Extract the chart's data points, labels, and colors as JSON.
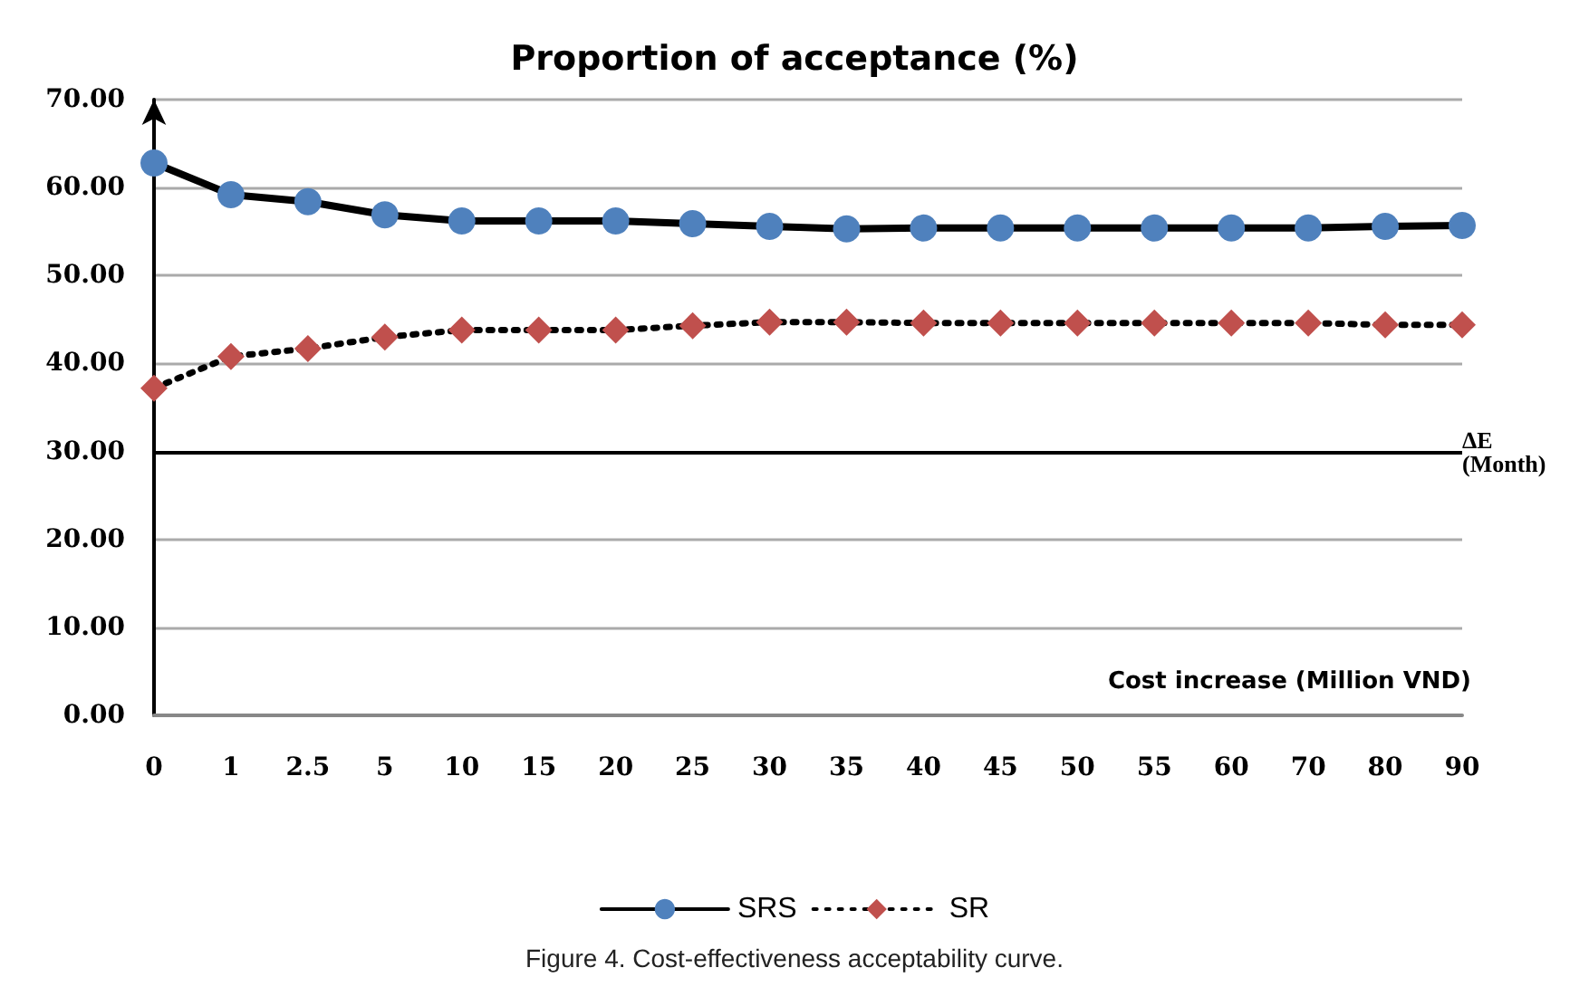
{
  "chart_data": {
    "type": "line",
    "title": "Proportion of acceptance (%)",
    "xlabel": "Cost increase (Million VND)",
    "categories": [
      "0",
      "1",
      "2.5",
      "5",
      "10",
      "15",
      "20",
      "25",
      "30",
      "35",
      "40",
      "45",
      "50",
      "55",
      "60",
      "70",
      "80",
      "90"
    ],
    "series": [
      {
        "name": "SRS",
        "color": "#4f81bd",
        "marker": "circle",
        "line_style": "solid",
        "values": [
          62.8,
          59.2,
          58.4,
          56.9,
          56.2,
          56.2,
          56.2,
          55.9,
          55.6,
          55.3,
          55.4,
          55.4,
          55.4,
          55.4,
          55.4,
          55.4,
          55.6,
          55.7
        ]
      },
      {
        "name": "SR",
        "color": "#c0504d",
        "marker": "diamond",
        "line_style": "dotted",
        "values": [
          37.2,
          40.8,
          41.7,
          43.0,
          43.8,
          43.8,
          43.8,
          44.3,
          44.7,
          44.7,
          44.6,
          44.6,
          44.6,
          44.6,
          44.6,
          44.6,
          44.4,
          44.4
        ]
      }
    ],
    "ylim": [
      0,
      70
    ],
    "yticks": [
      {
        "value": 0,
        "label": "0.00"
      },
      {
        "value": 10,
        "label": "10.00"
      },
      {
        "value": 20,
        "label": "20.00"
      },
      {
        "value": 30,
        "label": "30.00"
      },
      {
        "value": 40,
        "label": "40.00"
      },
      {
        "value": 50,
        "label": "50.00"
      },
      {
        "value": 60,
        "label": "60.00"
      },
      {
        "value": 70,
        "label": "70.00"
      }
    ],
    "grid": "y",
    "legend": "bottom",
    "ref_lines": [
      {
        "axis": "y",
        "value": 30,
        "label": "ΔE (Month)",
        "color": "#000000"
      }
    ],
    "annotations": [
      "Figure 4. Cost-effectiveness acceptability curve."
    ]
  }
}
